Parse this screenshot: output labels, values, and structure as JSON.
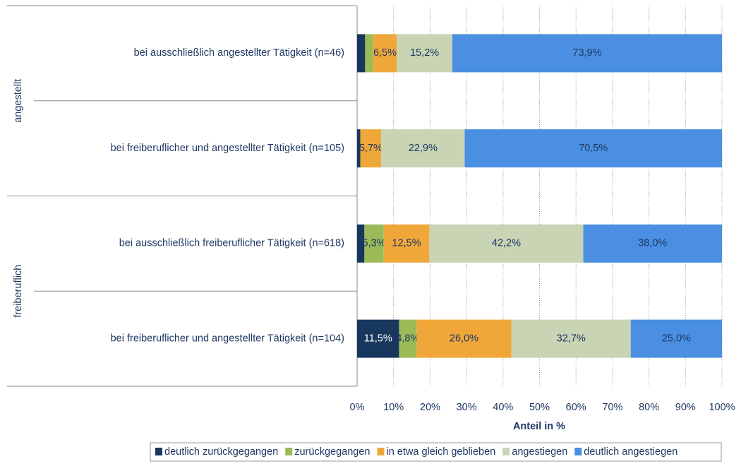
{
  "chart_data": {
    "type": "bar",
    "orientation": "horizontal",
    "stacked": true,
    "categories": [
      "bei ausschließlich angestellter Tätigkeit (n=46)",
      "bei freiberuflicher und angestellter Tätigkeit (n=105)",
      "bei ausschließlich freiberuflicher Tätigkeit (n=618)",
      "bei freiberuflicher und angestellter Tätigkeit (n=104)"
    ],
    "groups": [
      {
        "label": "angestellt",
        "categories": [
          0,
          1
        ]
      },
      {
        "label": "freiberuflich",
        "categories": [
          2,
          3
        ]
      }
    ],
    "series": [
      {
        "name": "deutlich zurückgegangen",
        "color": "#17375e",
        "values": [
          2.2,
          0.9,
          2.0,
          11.5
        ],
        "value_labels": [
          null,
          null,
          null,
          "11,5%"
        ]
      },
      {
        "name": "zurückgegangen",
        "color": "#9bbb59",
        "values": [
          2.2,
          0.0,
          5.3,
          4.8
        ],
        "value_labels": [
          null,
          null,
          "5,3%",
          "4,8%"
        ]
      },
      {
        "name": "in etwa gleich geblieben",
        "color": "#f0a73a",
        "values": [
          6.5,
          5.7,
          12.5,
          26.0
        ],
        "value_labels": [
          "6,5%",
          "5,7%",
          "12,5%",
          "26,0%"
        ]
      },
      {
        "name": "angestiegen",
        "color": "#c8d4b4",
        "values": [
          15.2,
          22.9,
          42.2,
          32.7
        ],
        "value_labels": [
          "15,2%",
          "22,9%",
          "42,2%",
          "32,7%"
        ]
      },
      {
        "name": "deutlich angestiegen",
        "color": "#4a8fe2",
        "values": [
          73.9,
          70.5,
          38.0,
          25.0
        ],
        "value_labels": [
          "73,9%",
          "70,5%",
          "38,0%",
          "25,0%"
        ]
      }
    ],
    "xlim": [
      0,
      100
    ],
    "xticks": [
      {
        "value": 0,
        "label": "0%"
      },
      {
        "value": 10,
        "label": "10%"
      },
      {
        "value": 20,
        "label": "20%"
      },
      {
        "value": 30,
        "label": "30%"
      },
      {
        "value": 40,
        "label": "40%"
      },
      {
        "value": 50,
        "label": "50%"
      },
      {
        "value": 60,
        "label": "60%"
      },
      {
        "value": 70,
        "label": "70%"
      },
      {
        "value": 80,
        "label": "80%"
      },
      {
        "value": 90,
        "label": "90%"
      },
      {
        "value": 100,
        "label": "100%"
      }
    ],
    "xlabel": "Anteil in %",
    "grid": true,
    "legend": "bottom"
  }
}
